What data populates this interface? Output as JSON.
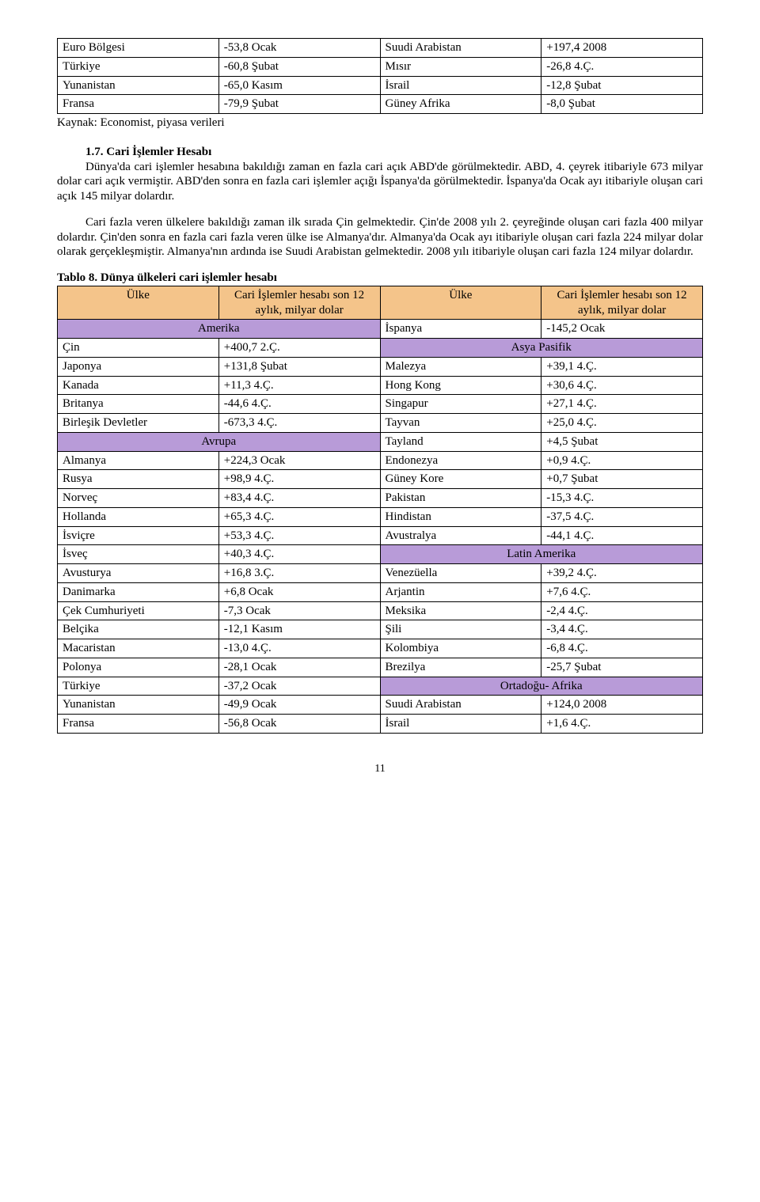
{
  "table7": {
    "colors": {
      "section_bg": "#b89bd8"
    },
    "rows": [
      [
        "Euro Bölgesi",
        "-53,8 Ocak",
        "Suudi Arabistan",
        "+197,4 2008"
      ],
      [
        "Türkiye",
        "-60,8 Şubat",
        "Mısır",
        "-26,8 4.Ç."
      ],
      [
        "Yunanistan",
        "-65,0 Kasım",
        "İsrail",
        "-12,8 Şubat"
      ],
      [
        "Fransa",
        "-79,9 Şubat",
        "Güney Afrika",
        "-8,0 Şubat"
      ]
    ],
    "source": "Kaynak: Economist, piyasa verileri"
  },
  "section": {
    "heading": "1.7. Cari İşlemler Hesabı",
    "p1": "Dünya'da cari işlemler hesabına bakıldığı zaman en fazla cari açık ABD'de görülmektedir. ABD, 4. çeyrek itibariyle 673 milyar dolar cari açık vermiştir. ABD'den sonra en fazla cari işlemler açığı İspanya'da görülmektedir. İspanya'da Ocak ayı itibariyle oluşan cari açık 145 milyar dolardır.",
    "p2": "Cari fazla veren ülkelere bakıldığı zaman ilk sırada Çin gelmektedir. Çin'de 2008 yılı 2. çeyreğinde oluşan cari fazla 400 milyar dolardır. Çin'den sonra en fazla cari fazla veren ülke ise Almanya'dır. Almanya'da Ocak ayı itibariyle oluşan cari fazla 224 milyar dolar olarak gerçekleşmiştir. Almanya'nın ardında ise Suudi Arabistan gelmektedir. 2008 yılı itibariyle oluşan cari fazla 124 milyar dolardır."
  },
  "table8": {
    "caption": "Tablo 8. Dünya ülkeleri cari işlemler hesabı",
    "colors": {
      "header_bg": "#f4c48a",
      "section_bg": "#b89bd8"
    },
    "header": {
      "c1": "Ülke",
      "c2": "Cari İşlemler hesabı son 12 aylık, milyar dolar",
      "c3": "Ülke",
      "c4": "Cari İşlemler hesabı son 12 aylık, milyar dolar"
    },
    "rows": [
      {
        "type": "mix",
        "leftSection": "Amerika",
        "r3": "İspanya",
        "r4": "-145,2 Ocak"
      },
      {
        "type": "mix2",
        "l1": "Çin",
        "l2": "+400,7 2.Ç.",
        "rightSection": "Asya Pasifik"
      },
      {
        "type": "data",
        "c": [
          "Japonya",
          "+131,8 Şubat",
          "Malezya",
          "+39,1 4.Ç."
        ]
      },
      {
        "type": "data",
        "c": [
          "Kanada",
          "+11,3 4.Ç.",
          "Hong Kong",
          "+30,6 4.Ç."
        ]
      },
      {
        "type": "data",
        "c": [
          "Britanya",
          "-44,6 4.Ç.",
          "Singapur",
          "+27,1 4.Ç."
        ]
      },
      {
        "type": "data",
        "c": [
          "Birleşik Devletler",
          "-673,3 4.Ç.",
          "Tayvan",
          "+25,0 4.Ç."
        ]
      },
      {
        "type": "mix",
        "leftSection": "Avrupa",
        "r3": "Tayland",
        "r4": "+4,5 Şubat"
      },
      {
        "type": "data",
        "c": [
          "Almanya",
          "+224,3 Ocak",
          "Endonezya",
          "+0,9 4.Ç."
        ]
      },
      {
        "type": "data",
        "c": [
          "Rusya",
          "+98,9 4.Ç.",
          "Güney Kore",
          "+0,7 Şubat"
        ]
      },
      {
        "type": "data",
        "c": [
          "Norveç",
          "+83,4 4.Ç.",
          "Pakistan",
          "-15,3 4.Ç."
        ]
      },
      {
        "type": "data",
        "c": [
          "Hollanda",
          "+65,3 4.Ç.",
          "Hindistan",
          "-37,5 4.Ç."
        ]
      },
      {
        "type": "data",
        "c": [
          "İsviçre",
          "+53,3 4.Ç.",
          "Avustralya",
          "-44,1 4.Ç."
        ]
      },
      {
        "type": "mix2",
        "l1": "İsveç",
        "l2": "+40,3 4.Ç.",
        "rightSection": "Latin Amerika"
      },
      {
        "type": "data",
        "c": [
          "Avusturya",
          "+16,8 3.Ç.",
          "Venezüella",
          "+39,2 4.Ç."
        ]
      },
      {
        "type": "data",
        "c": [
          "Danimarka",
          "+6,8 Ocak",
          "Arjantin",
          "+7,6 4.Ç."
        ]
      },
      {
        "type": "data",
        "c": [
          "Çek Cumhuriyeti",
          "-7,3 Ocak",
          "Meksika",
          "-2,4 4.Ç."
        ]
      },
      {
        "type": "data",
        "c": [
          "Belçika",
          "-12,1 Kasım",
          "Şili",
          "-3,4 4.Ç."
        ]
      },
      {
        "type": "data",
        "c": [
          "Macaristan",
          "-13,0 4.Ç.",
          "Kolombiya",
          "-6,8 4.Ç."
        ]
      },
      {
        "type": "data",
        "c": [
          "Polonya",
          "-28,1 Ocak",
          "Brezilya",
          "-25,7 Şubat"
        ]
      },
      {
        "type": "mix2",
        "l1": "Türkiye",
        "l2": "-37,2 Ocak",
        "rightSection": "Ortadoğu- Afrika"
      },
      {
        "type": "data",
        "c": [
          "Yunanistan",
          "-49,9 Ocak",
          "Suudi Arabistan",
          "+124,0 2008"
        ]
      },
      {
        "type": "data",
        "c": [
          "Fransa",
          "-56,8 Ocak",
          "İsrail",
          "+1,6 4.Ç."
        ]
      }
    ]
  },
  "page_number": "11"
}
